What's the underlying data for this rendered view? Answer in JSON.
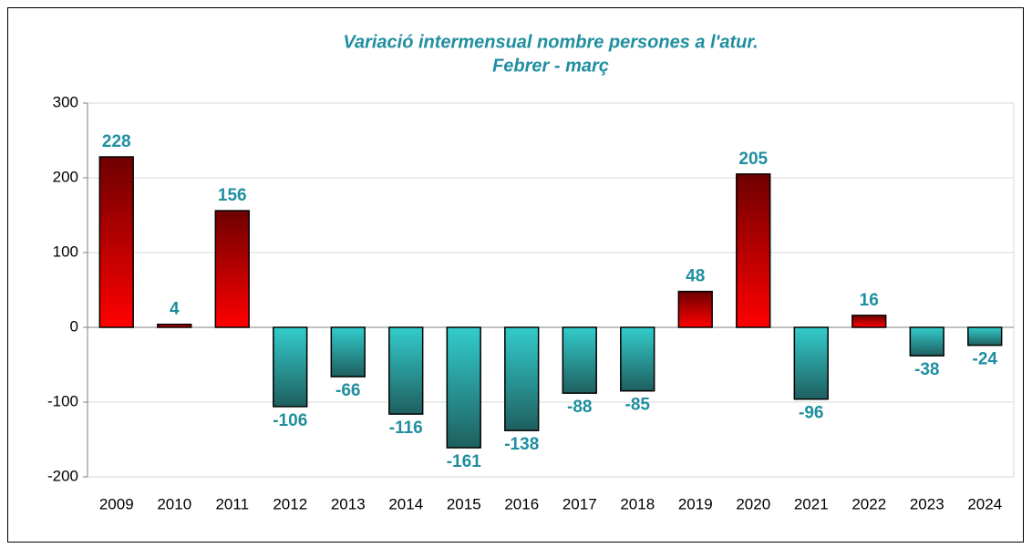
{
  "chart_data": {
    "type": "bar",
    "title": "Variació intermensual nombre persones a l'atur.",
    "subtitle": "Febrer - març",
    "categories": [
      "2009",
      "2010",
      "2011",
      "2012",
      "2013",
      "2014",
      "2015",
      "2016",
      "2017",
      "2018",
      "2019",
      "2020",
      "2021",
      "2022",
      "2023",
      "2024"
    ],
    "values": [
      228,
      4,
      156,
      -106,
      -66,
      -116,
      -161,
      -138,
      -88,
      -85,
      48,
      205,
      -96,
      16,
      -38,
      -24
    ],
    "positive_colors": [
      "#6e0000",
      "#ff0000"
    ],
    "negative_colors": [
      "#33cccc",
      "#1f5f5f"
    ],
    "label_color": "#1f8fa0",
    "ylim": [
      -200,
      300
    ],
    "yticks": [
      -200,
      -100,
      0,
      100,
      200,
      300
    ],
    "grid": true
  }
}
